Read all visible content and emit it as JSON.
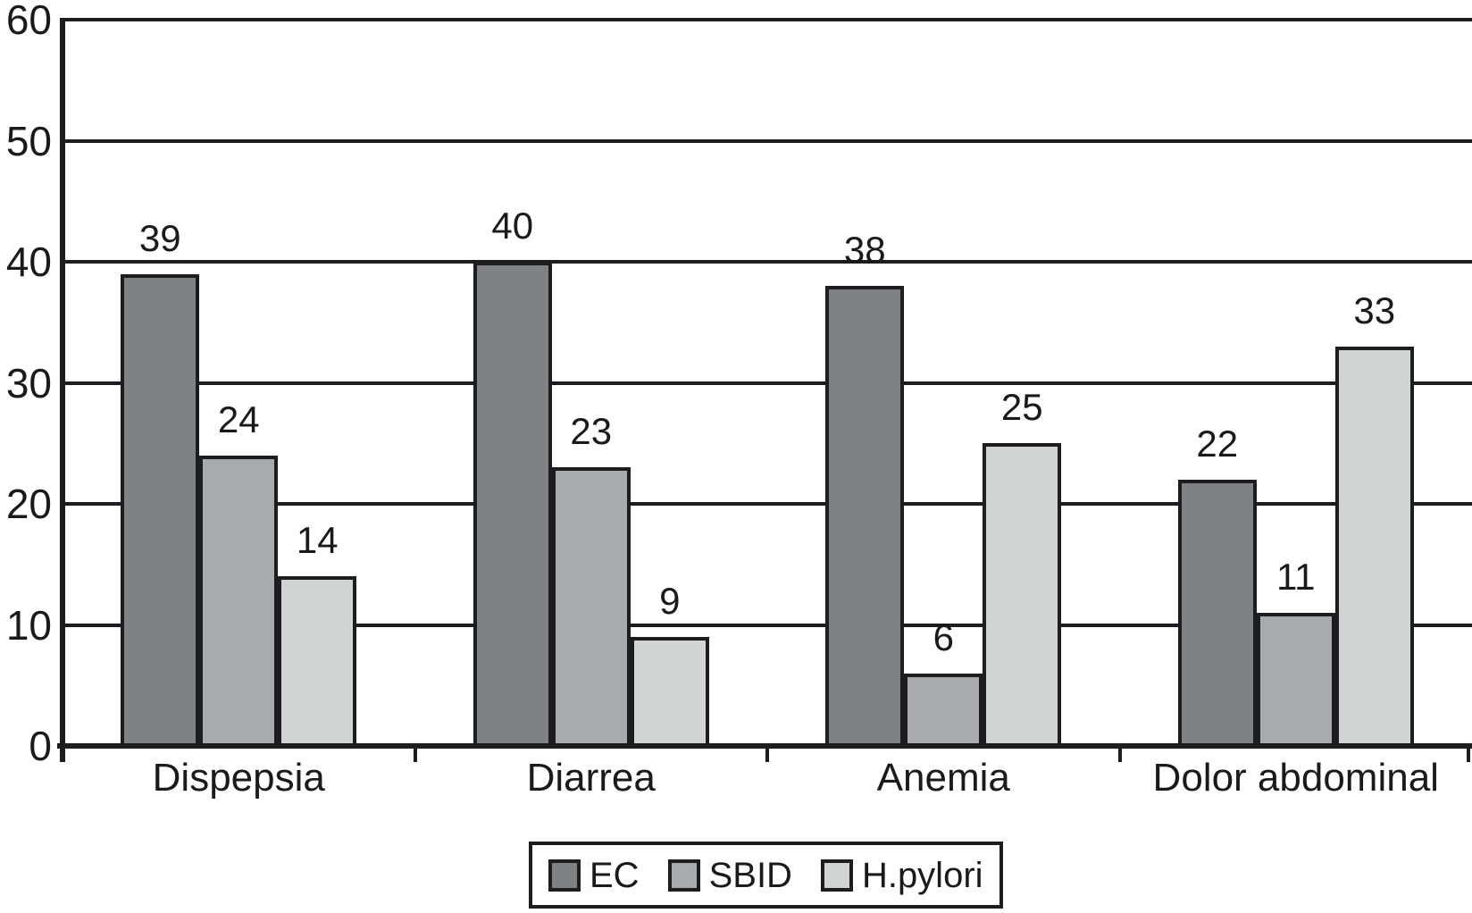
{
  "chart_data": {
    "type": "bar",
    "title": "",
    "xlabel": "",
    "ylabel": "",
    "categories": [
      "Dispepsia",
      "Diarrea",
      "Anemia",
      "Dolor abdominal"
    ],
    "series": [
      {
        "name": "EC",
        "color": "#7f8285",
        "values": [
          39,
          40,
          38,
          22
        ]
      },
      {
        "name": "SBID",
        "color": "#a8abae",
        "values": [
          24,
          23,
          6,
          11
        ]
      },
      {
        "name": "H.pylori",
        "color": "#d1d4d5",
        "values": [
          14,
          9,
          25,
          33
        ]
      }
    ],
    "ylim": [
      0,
      60
    ],
    "y_ticks": [
      0,
      10,
      20,
      30,
      40,
      50,
      60
    ],
    "grid": "horizontal",
    "bar_value_labels": true,
    "legend_position": "bottom",
    "legend_labels": [
      "EC",
      "SBID",
      "H.pylori"
    ],
    "colors": {
      "axis": "#1d1d1f",
      "text": "#1a1a1a",
      "background": "#ffffff"
    }
  }
}
